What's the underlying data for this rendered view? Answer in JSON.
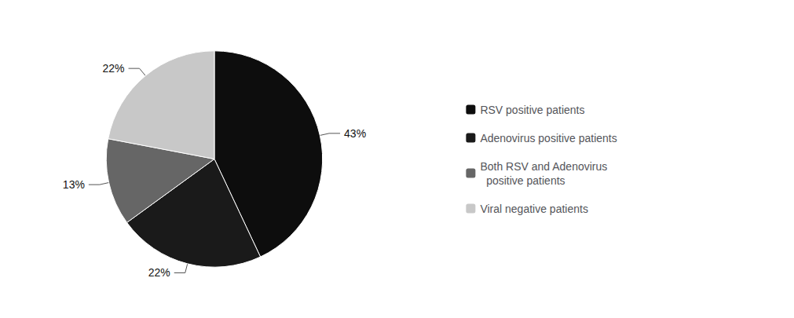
{
  "chart_data": {
    "type": "pie",
    "categories": [
      "RSV positive patients",
      "Adenovirus positive patients",
      "Both RSV and Adenovirus\n  positive patients",
      "Viral negative patients"
    ],
    "values": [
      43,
      22,
      13,
      22
    ],
    "value_labels": [
      "43%",
      "22%",
      "13%",
      "22%"
    ],
    "colors": [
      "#0d0d0d",
      "#1a1a1a",
      "#666666",
      "#c8c8c8"
    ],
    "data_labels": true,
    "legend": "right"
  }
}
